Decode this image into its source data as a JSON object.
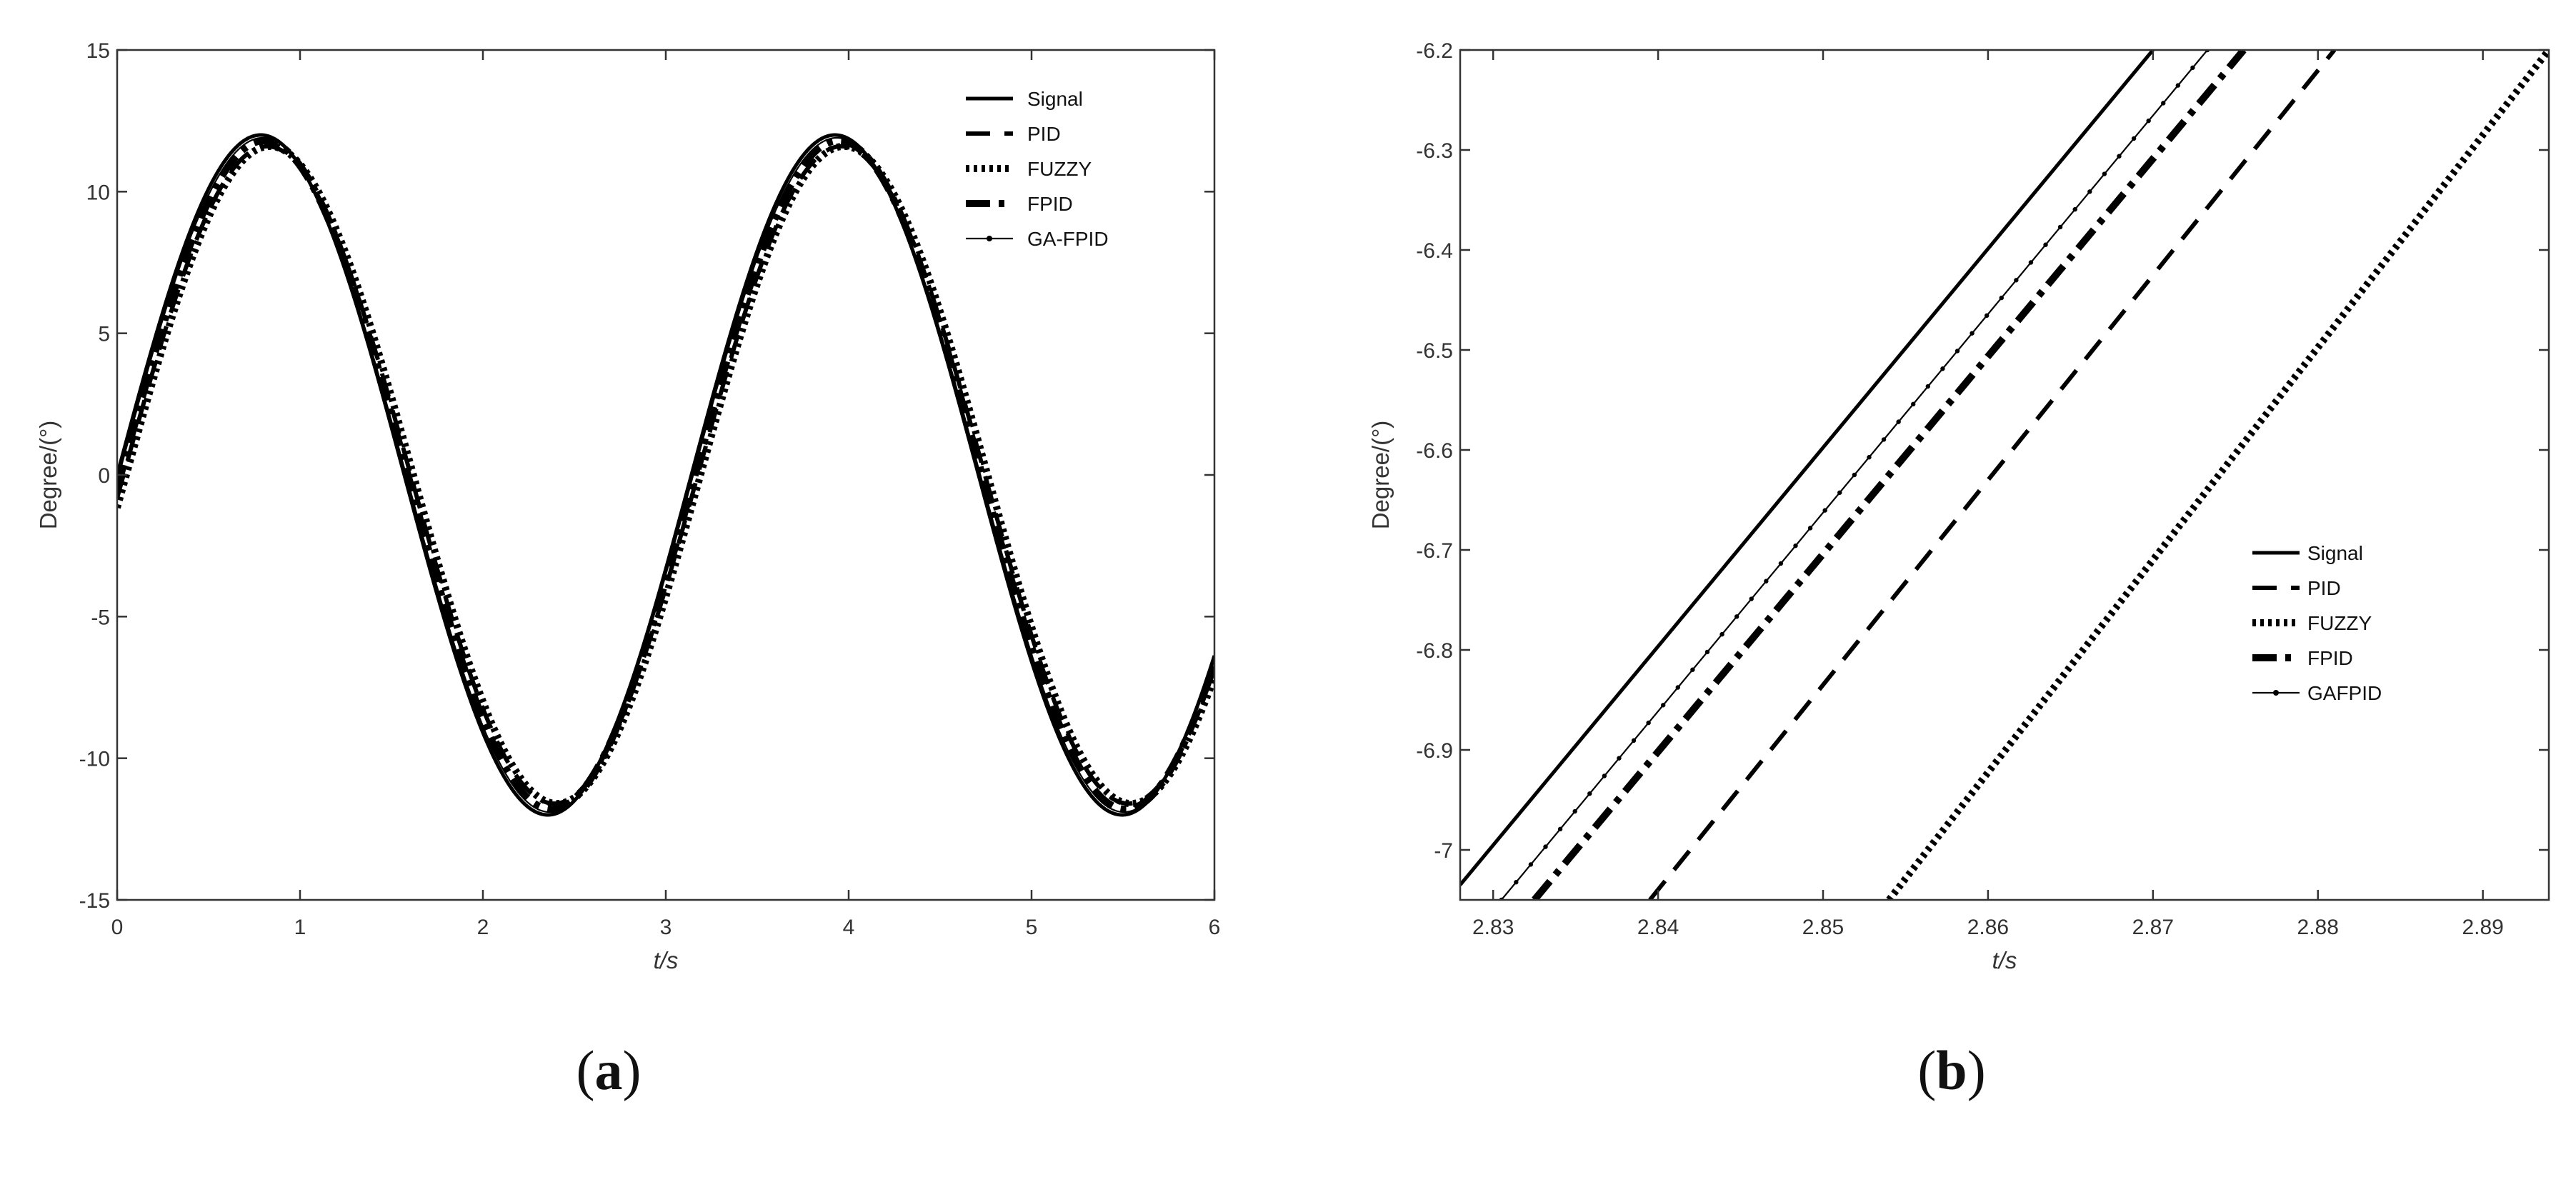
{
  "chart_data": [
    {
      "type": "line",
      "panel_label": "a",
      "xlabel": "t/s",
      "ylabel": "Degree/(°)",
      "xlim": [
        0,
        6
      ],
      "ylim": [
        -15,
        15
      ],
      "xticks": [
        "0",
        "1",
        "2",
        "3",
        "4",
        "5",
        "6"
      ],
      "yticks": [
        "15",
        "10",
        "5",
        "0",
        "-5",
        "-10",
        "-15"
      ],
      "legend_position": "top-right",
      "grid": false,
      "series_model": "sinusoid: y = amplitude * sin(2*pi*(x - delay)/period)",
      "period": 3.14,
      "series": [
        {
          "name": "Signal",
          "style": "solid",
          "amplitude": 12.0,
          "delay": 0.0
        },
        {
          "name": "PID",
          "style": "dashed",
          "amplitude": 11.6,
          "delay": 0.035
        },
        {
          "name": "FUZZY",
          "style": "dotted",
          "amplitude": 11.6,
          "delay": 0.05
        },
        {
          "name": "FPID",
          "style": "dashdot",
          "amplitude": 11.8,
          "delay": 0.02
        },
        {
          "name": "GA-FPID",
          "style": "dot-marker",
          "amplitude": 11.9,
          "delay": 0.01
        }
      ]
    },
    {
      "type": "line",
      "panel_label": "b",
      "xlabel": "t/s",
      "ylabel": "Degree/(°)",
      "xlim": [
        2.828,
        2.894
      ],
      "ylim": [
        -7.05,
        -6.2
      ],
      "xticks": [
        "2.83",
        "2.84",
        "2.85",
        "2.86",
        "2.87",
        "2.88",
        "2.89"
      ],
      "yticks": [
        "-6.2",
        "-6.3",
        "-6.4",
        "-6.5",
        "-6.6",
        "-6.7",
        "-6.8",
        "-6.9",
        "-7"
      ],
      "legend_position": "lower-right",
      "grid": false,
      "series": [
        {
          "name": "Signal",
          "style": "solid",
          "x": [
            2.828,
            2.87
          ],
          "y": [
            -7.035,
            -6.2
          ]
        },
        {
          "name": "PID",
          "style": "dashed",
          "x": [
            2.8395,
            2.881
          ],
          "y": [
            -7.05,
            -6.2
          ]
        },
        {
          "name": "FUZZY",
          "style": "dotted",
          "x": [
            2.854,
            2.894
          ],
          "y": [
            -7.05,
            -6.2
          ]
        },
        {
          "name": "FPID",
          "style": "dashdot",
          "x": [
            2.8325,
            2.8755
          ],
          "y": [
            -7.05,
            -6.2
          ]
        },
        {
          "name": "GAFPID",
          "style": "dot-marker",
          "x": [
            2.8305,
            2.8733
          ],
          "y": [
            -7.05,
            -6.2
          ]
        }
      ]
    }
  ]
}
